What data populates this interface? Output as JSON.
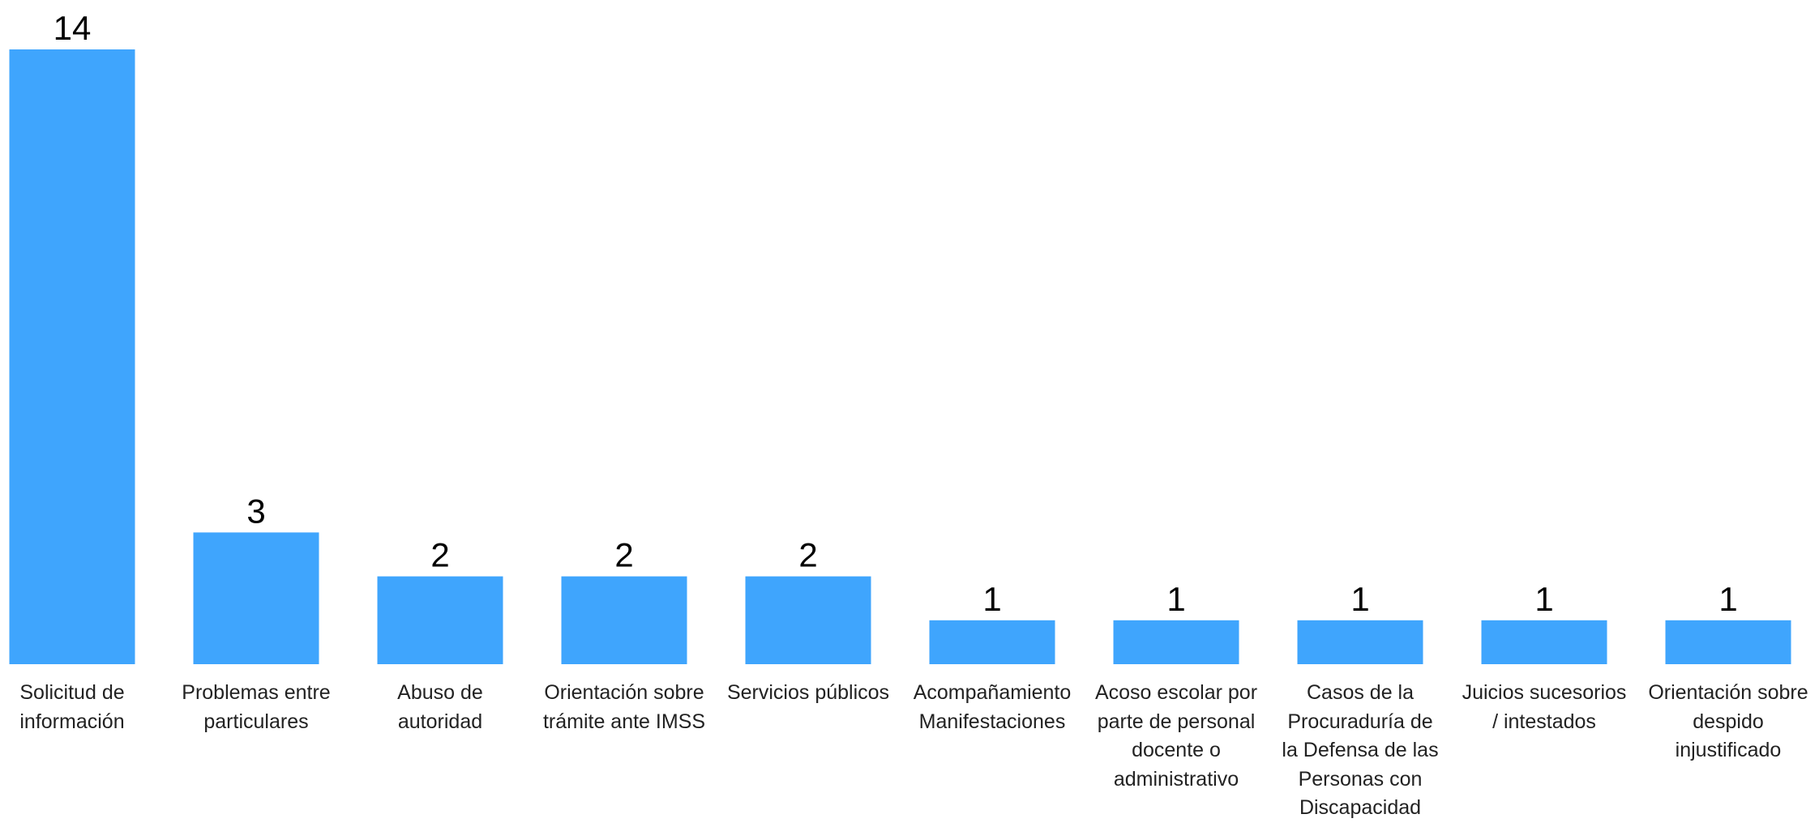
{
  "chart_data": {
    "type": "bar",
    "categories": [
      "Solicitud de\ninformación",
      "Problemas entre\nparticulares",
      "Abuso de\nautoridad",
      "Orientación sobre\ntrámite ante IMSS",
      "Servicios públicos",
      "Acompañamiento\nManifestaciones",
      "Acoso escolar por\nparte de personal\ndocente o\nadministrativo",
      "Casos de la\nProcuraduría de\nla Defensa de las\nPersonas con\nDiscapacidad",
      "Juicios sucesorios\n/ intestados",
      "Orientación sobre\ndespido\ninjustificado"
    ],
    "values": [
      14,
      3,
      2,
      2,
      2,
      1,
      1,
      1,
      1,
      1
    ],
    "color": "#3fa5fd",
    "ylim": [
      0,
      14
    ]
  }
}
